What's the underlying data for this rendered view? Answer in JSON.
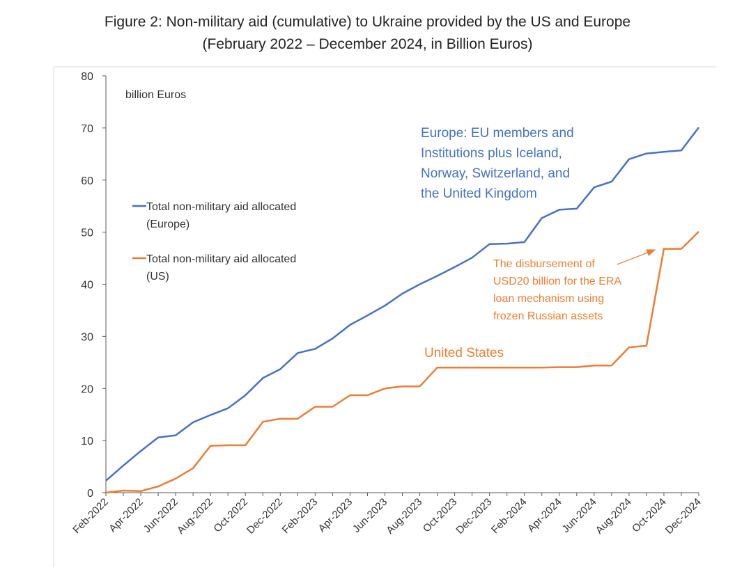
{
  "figure": {
    "title_line1": "Figure 2: Non-military aid (cumulative) to Ukraine provided by the US and Europe",
    "title_line2": "(February 2022 – December 2024, in Billion Euros)"
  },
  "chart_data": {
    "type": "line",
    "unit_label": "billion Euros",
    "ylim": [
      0,
      80
    ],
    "yticks": [
      0,
      10,
      20,
      30,
      40,
      50,
      60,
      70,
      80
    ],
    "grid": false,
    "legend_placement": "left-middle",
    "x": [
      "Feb-2022",
      "Mar-2022",
      "Apr-2022",
      "May-2022",
      "Jun-2022",
      "Jul-2022",
      "Aug-2022",
      "Sep-2022",
      "Oct-2022",
      "Nov-2022",
      "Dec-2022",
      "Jan-2023",
      "Feb-2023",
      "Mar-2023",
      "Apr-2023",
      "May-2023",
      "Jun-2023",
      "Jul-2023",
      "Aug-2023",
      "Sep-2023",
      "Oct-2023",
      "Nov-2023",
      "Dec-2023",
      "Jan-2024",
      "Feb-2024",
      "Mar-2024",
      "Apr-2024",
      "May-2024",
      "Jun-2024",
      "Jul-2024",
      "Aug-2024",
      "Sep-2024",
      "Oct-2024",
      "Nov-2024",
      "Dec-2024"
    ],
    "xtick_labels": [
      "Feb-2022",
      "Apr-2022",
      "Jun-2022",
      "Aug-2022",
      "Oct-2022",
      "Dec-2022",
      "Feb-2023",
      "Apr-2023",
      "Jun-2023",
      "Aug-2023",
      "Oct-2023",
      "Dec-2023",
      "Feb-2024",
      "Apr-2024",
      "Jun-2024",
      "Aug-2024",
      "Oct-2024",
      "Dec-2024"
    ],
    "series": [
      {
        "name": "Total non-military aid allocated (Europe)",
        "legend_line1": "Total non-military aid allocated",
        "legend_line2": "(Europe)",
        "color": "#4472C4",
        "values": [
          2.3,
          5.2,
          8.0,
          10.6,
          11.0,
          13.5,
          14.9,
          16.2,
          18.7,
          22.0,
          23.7,
          26.8,
          27.6,
          29.6,
          32.2,
          34.0,
          35.9,
          38.2,
          40.0,
          41.6,
          43.3,
          45.1,
          47.7,
          47.8,
          48.1,
          52.7,
          54.3,
          54.5,
          58.6,
          59.7,
          64.0,
          65.1,
          65.4,
          65.7,
          70.1
        ]
      },
      {
        "name": "Total non-military aid allocated (US)",
        "legend_line1": "Total non-military aid allocated",
        "legend_line2": "(US)",
        "color": "#ED7D31",
        "values": [
          0.0,
          0.4,
          0.3,
          1.2,
          2.7,
          4.7,
          9.0,
          9.1,
          9.1,
          13.6,
          14.2,
          14.2,
          16.5,
          16.5,
          18.7,
          18.7,
          20.0,
          20.4,
          20.4,
          24.0,
          24.0,
          24.0,
          24.0,
          24.0,
          24.0,
          24.0,
          24.1,
          24.1,
          24.4,
          24.4,
          27.9,
          28.2,
          46.8,
          46.8,
          50.1
        ]
      }
    ],
    "annotations": {
      "europe_label": [
        "Europe: EU members and",
        "Institutions plus Iceland,",
        "Norway, Switzerland, and",
        "the United Kingdom"
      ],
      "us_label": "United States",
      "era_note": [
        "The disbursement of",
        "USD20 billion for the ERA",
        "loan mechanism using",
        "frozen Russian assets"
      ]
    }
  }
}
